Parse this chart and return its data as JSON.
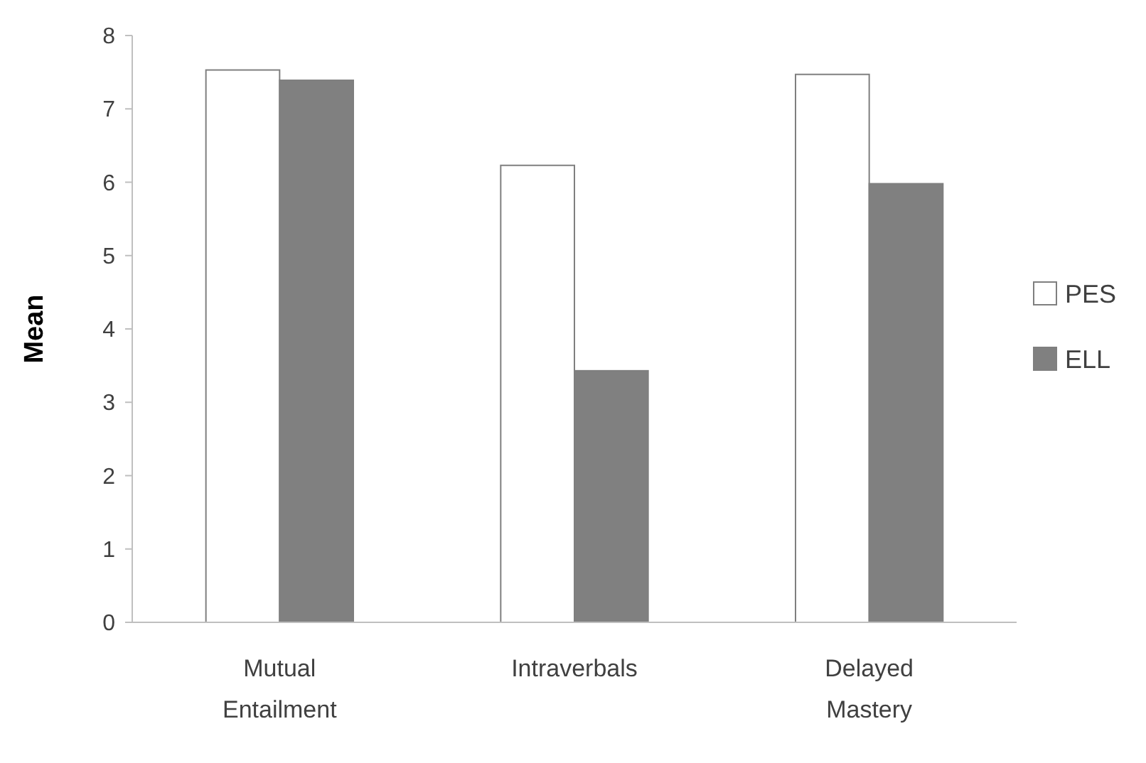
{
  "chart_data": {
    "type": "bar",
    "ylabel": "Mean",
    "categories": [
      "Mutual Entailment",
      "Intraverbals",
      "Delayed Mastery"
    ],
    "series": [
      {
        "name": "PES",
        "color": "#ffffff",
        "values": [
          7.53,
          6.23,
          7.47
        ]
      },
      {
        "name": "ELL",
        "color": "#808080",
        "values": [
          7.39,
          3.43,
          5.98
        ]
      }
    ],
    "ylim": [
      0,
      8
    ],
    "yticks": [
      0,
      1,
      2,
      3,
      4,
      5,
      6,
      7,
      8
    ],
    "grid": false,
    "legend": "right"
  }
}
